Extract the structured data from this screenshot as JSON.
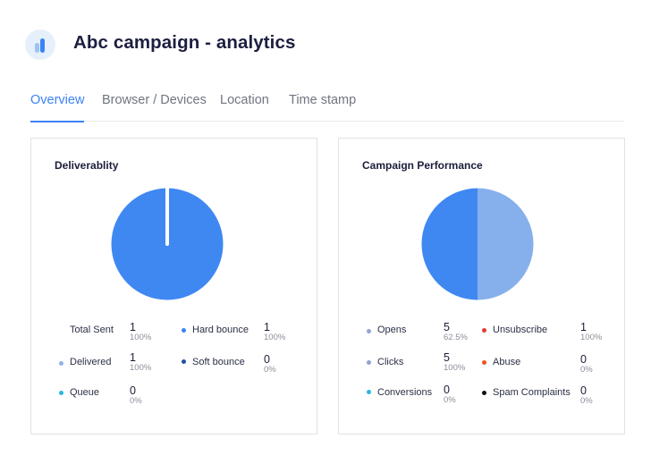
{
  "header": {
    "title": "Abc campaign - analytics",
    "logo_icon": "bar-chart-icon"
  },
  "tabs": [
    {
      "label": "Overview",
      "active": true
    },
    {
      "label": "Browser / Devices",
      "active": false
    },
    {
      "label": "Location",
      "active": false
    },
    {
      "label": "Time stamp",
      "active": false
    }
  ],
  "colors": {
    "accent": "#3b82f6",
    "pie_primary": "#3f88f2",
    "pie_secondary": "#86b0ec"
  },
  "deliverability": {
    "title": "Deliverablity",
    "pie_delivered_fraction": 1.0,
    "stats": [
      {
        "label": "Total Sent",
        "value": "1",
        "pct": "100%",
        "dot": ""
      },
      {
        "label": "Hard bounce",
        "value": "1",
        "pct": "100%",
        "dot": "#3b82f6"
      },
      {
        "label": "Delivered",
        "value": "1",
        "pct": "100%",
        "dot": "#8fb2e8"
      },
      {
        "label": "Soft bounce",
        "value": "0",
        "pct": "0%",
        "dot": "#1f4f9e"
      },
      {
        "label": "Queue",
        "value": "0",
        "pct": "0%",
        "dot": "#29b6e0"
      }
    ]
  },
  "performance": {
    "title": "Campaign Performance",
    "pie_split_fraction": 0.5,
    "stats": [
      {
        "label": "Opens",
        "value": "5",
        "pct": "62.5%",
        "dot": "#8fa6cf"
      },
      {
        "label": "Unsubscribe",
        "value": "1",
        "pct": "100%",
        "dot": "#e53935"
      },
      {
        "label": "Clicks",
        "value": "5",
        "pct": "100%",
        "dot": "#8fa6cf"
      },
      {
        "label": "Abuse",
        "value": "0",
        "pct": "0%",
        "dot": "#f4511e"
      },
      {
        "label": "Conversions",
        "value": "0",
        "pct": "0%",
        "dot": "#29b6e0"
      },
      {
        "label": "Spam Complaints",
        "value": "0",
        "pct": "0%",
        "dot": "#111111"
      }
    ]
  }
}
